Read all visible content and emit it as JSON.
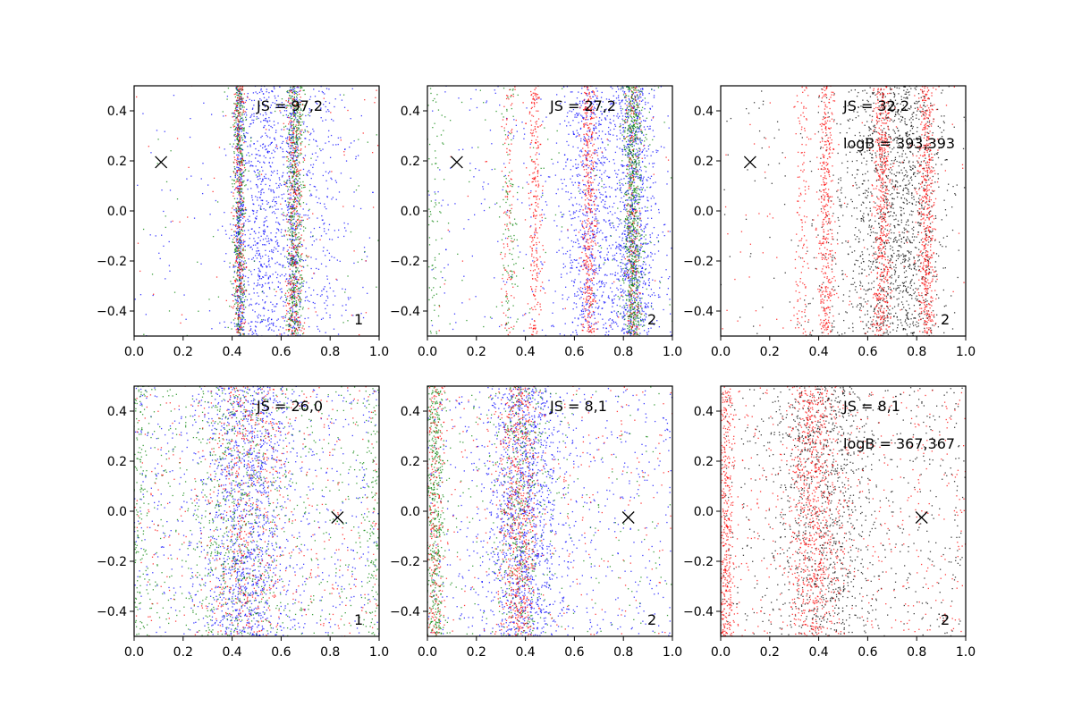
{
  "chart_data": {
    "type": "scatter",
    "xlim": [
      0.0,
      1.0
    ],
    "ylim": [
      -0.5,
      0.5
    ],
    "x_ticks": [
      "0.0",
      "0.2",
      "0.4",
      "0.6",
      "0.8",
      "1.0"
    ],
    "y_ticks": [
      "-0.4",
      "-0.2",
      "0.0",
      "0.2",
      "0.4"
    ],
    "colors": {
      "blue": "#0000ff",
      "green": "#008000",
      "red": "#ff0000",
      "black": "#000000"
    },
    "marker": {
      "symbol": "x",
      "color": "#000000"
    },
    "panels": [
      {
        "js_label": "JS = 97,2",
        "logb_label": "",
        "corner_label": "1",
        "marker_point": [
          0.11,
          0.195
        ],
        "series": [
          {
            "name": "blue",
            "color": "#0000ff",
            "n": 1800,
            "clusters": [
              {
                "x": 0.43,
                "sx": 0.01,
                "w": 1
              },
              {
                "x": 0.65,
                "sx": 0.014,
                "w": 1
              },
              {
                "x": 0.53,
                "sx": 0.06,
                "w": 2
              },
              {
                "x": 0.75,
                "sx": 0.08,
                "w": 0.8
              },
              {
                "u": true,
                "w": 0.4
              }
            ]
          },
          {
            "name": "green",
            "color": "#008000",
            "n": 1100,
            "clusters": [
              {
                "x": 0.43,
                "sx": 0.013,
                "w": 1
              },
              {
                "x": 0.655,
                "sx": 0.018,
                "w": 1.3
              },
              {
                "u": true,
                "w": 0.2
              }
            ]
          },
          {
            "name": "red",
            "color": "#ff0000",
            "n": 700,
            "clusters": [
              {
                "x": 0.43,
                "sx": 0.013,
                "w": 1
              },
              {
                "x": 0.655,
                "sx": 0.02,
                "w": 1.2
              },
              {
                "u": true,
                "w": 0.2
              }
            ]
          }
        ]
      },
      {
        "js_label": "JS = 27,2",
        "logb_label": "",
        "corner_label": "2",
        "marker_point": [
          0.12,
          0.195
        ],
        "series": [
          {
            "name": "blue",
            "color": "#0000ff",
            "n": 1900,
            "clusters": [
              {
                "x": 0.66,
                "sx": 0.05,
                "w": 1.2
              },
              {
                "x": 0.84,
                "sx": 0.04,
                "w": 1.8
              },
              {
                "x": 0.75,
                "sx": 0.12,
                "w": 1
              },
              {
                "u": true,
                "w": 0.6
              }
            ]
          },
          {
            "name": "red",
            "color": "#ff0000",
            "n": 1100,
            "clusters": [
              {
                "x": 0.44,
                "sx": 0.012,
                "w": 0.8
              },
              {
                "x": 0.66,
                "sx": 0.015,
                "w": 1.2
              },
              {
                "x": 0.84,
                "sx": 0.015,
                "w": 0.8
              },
              {
                "x": 0.33,
                "sx": 0.015,
                "w": 0.3
              },
              {
                "u": true,
                "w": 0.15
              }
            ]
          },
          {
            "name": "green",
            "color": "#008000",
            "n": 1000,
            "clusters": [
              {
                "x": 0.84,
                "sx": 0.02,
                "w": 2
              },
              {
                "x": 0.02,
                "sx": 0.02,
                "w": 0.3
              },
              {
                "x": 0.33,
                "sx": 0.02,
                "w": 0.3
              },
              {
                "u": true,
                "w": 0.3
              }
            ]
          }
        ]
      },
      {
        "js_label": "JS = 32,2",
        "logb_label": "logB = 393,393",
        "corner_label": "2",
        "marker_point": [
          0.12,
          0.195
        ],
        "series": [
          {
            "name": "black",
            "color": "#000000",
            "n": 1600,
            "clusters": [
              {
                "x": 0.75,
                "sx": 0.08,
                "w": 2
              },
              {
                "x": 0.6,
                "sx": 0.1,
                "w": 1
              },
              {
                "u": true,
                "w": 0.3
              }
            ]
          },
          {
            "name": "red",
            "color": "#ff0000",
            "n": 1700,
            "clusters": [
              {
                "x": 0.43,
                "sx": 0.015,
                "w": 0.8
              },
              {
                "x": 0.66,
                "sx": 0.018,
                "w": 1.2
              },
              {
                "x": 0.84,
                "sx": 0.018,
                "w": 1.1
              },
              {
                "x": 0.33,
                "sx": 0.015,
                "w": 0.25
              },
              {
                "u": true,
                "w": 0.2
              }
            ]
          }
        ]
      },
      {
        "js_label": "JS = 26,0",
        "logb_label": "",
        "corner_label": "1",
        "marker_point": [
          0.83,
          -0.025
        ],
        "series": [
          {
            "name": "blue",
            "color": "#0000ff",
            "n": 1700,
            "clusters": [
              {
                "x": 0.46,
                "sx": 0.1,
                "w": 2
              },
              {
                "u": true,
                "w": 1
              }
            ]
          },
          {
            "name": "green",
            "color": "#008000",
            "n": 1300,
            "clusters": [
              {
                "x": 0.42,
                "sx": 0.09,
                "w": 1
              },
              {
                "x": 0.02,
                "sx": 0.02,
                "w": 0.3
              },
              {
                "x": 0.98,
                "sx": 0.02,
                "w": 0.3
              },
              {
                "u": true,
                "w": 1.2
              }
            ]
          },
          {
            "name": "red",
            "color": "#ff0000",
            "n": 800,
            "clusters": [
              {
                "x": 0.45,
                "sx": 0.08,
                "w": 1
              },
              {
                "u": true,
                "w": 1
              }
            ]
          }
        ]
      },
      {
        "js_label": "JS = 8,1",
        "logb_label": "",
        "corner_label": "2",
        "marker_point": [
          0.82,
          -0.025
        ],
        "series": [
          {
            "name": "blue",
            "color": "#0000ff",
            "n": 1700,
            "clusters": [
              {
                "x": 0.4,
                "sx": 0.08,
                "w": 2
              },
              {
                "u": true,
                "w": 1
              }
            ]
          },
          {
            "name": "green",
            "color": "#008000",
            "n": 1100,
            "clusters": [
              {
                "x": 0.03,
                "sx": 0.02,
                "w": 1.2
              },
              {
                "x": 0.38,
                "sx": 0.05,
                "w": 1
              },
              {
                "u": true,
                "w": 0.6
              }
            ]
          },
          {
            "name": "red",
            "color": "#ff0000",
            "n": 1100,
            "clusters": [
              {
                "x": 0.37,
                "sx": 0.04,
                "w": 1.5
              },
              {
                "x": 0.03,
                "sx": 0.02,
                "w": 0.6
              },
              {
                "u": true,
                "w": 0.6
              }
            ]
          }
        ]
      },
      {
        "js_label": "JS = 8,1",
        "logb_label": "logB = 367,367",
        "corner_label": "2",
        "marker_point": [
          0.82,
          -0.025
        ],
        "series": [
          {
            "name": "black",
            "color": "#000000",
            "n": 1400,
            "clusters": [
              {
                "x": 0.42,
                "sx": 0.1,
                "w": 1.5
              },
              {
                "u": true,
                "w": 1
              }
            ]
          },
          {
            "name": "red",
            "color": "#ff0000",
            "n": 1700,
            "clusters": [
              {
                "x": 0.38,
                "sx": 0.05,
                "w": 1.3
              },
              {
                "x": 0.02,
                "sx": 0.02,
                "w": 0.8
              },
              {
                "u": true,
                "w": 1
              }
            ]
          }
        ]
      }
    ]
  }
}
